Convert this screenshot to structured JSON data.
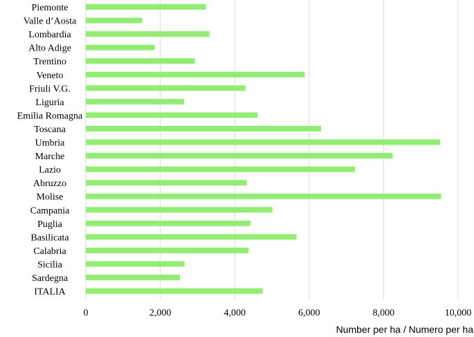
{
  "chart_data": {
    "type": "bar",
    "orientation": "horizontal",
    "categories": [
      "Piemonte",
      "Valle d’Aosta",
      "Lombardia",
      "Alto Adige",
      "Trentino",
      "Veneto",
      "Friuli V.G.",
      "Liguria",
      "Emilia Romagna",
      "Toscana",
      "Umbria",
      "Marche",
      "Lazio",
      "Abruzzo",
      "Molise",
      "Campania",
      "Puglia",
      "Basilicata",
      "Calabria",
      "Sicilia",
      "Sardegna",
      "ITALIA"
    ],
    "values": [
      3220,
      1510,
      3320,
      1850,
      2930,
      5880,
      4290,
      2640,
      4610,
      6320,
      9520,
      8240,
      7230,
      4320,
      9540,
      5010,
      4420,
      5660,
      4370,
      2650,
      2530,
      4750
    ],
    "xlim": [
      0,
      10000
    ],
    "xticks": [
      0,
      2000,
      4000,
      6000,
      8000,
      10000
    ],
    "xtick_labels": [
      "0",
      "2,000",
      "4,000",
      "6,000",
      "8,000",
      "10,000"
    ],
    "xlabel": "Number per ha / Numero per ha",
    "ylabel": "",
    "title": "",
    "grid": "vertical",
    "bar_color": "#90ee70"
  }
}
